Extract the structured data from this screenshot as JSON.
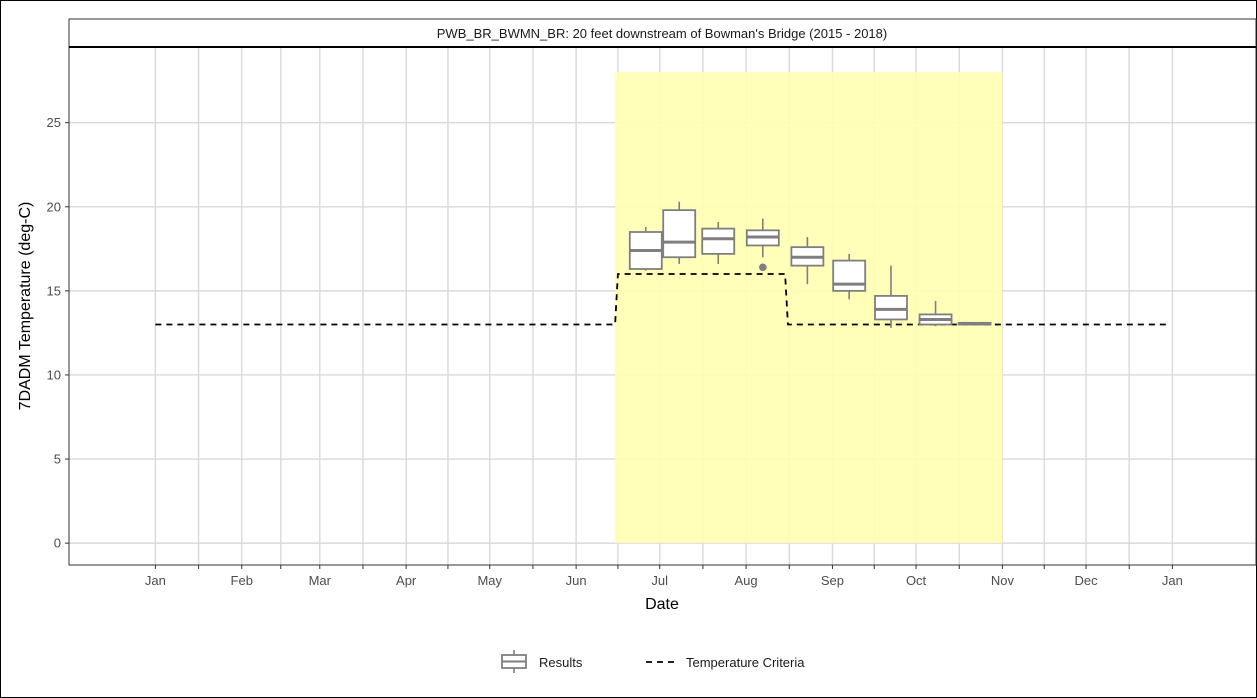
{
  "chart_data": {
    "type": "box",
    "title": "PWB_BR_BWMN_BR: 20 feet downstream of  Bowman's Bridge (2015 - 2018)",
    "xlabel": "Date",
    "ylabel": "7DADM Temperature (deg-C)",
    "ylim": [
      -1.3,
      29.5
    ],
    "yticks": [
      0,
      5,
      10,
      15,
      20,
      25
    ],
    "xdomain": [
      "2017-12-01",
      "2019-01-31"
    ],
    "xticks": [
      {
        "date": "2018-01-01",
        "label": "Jan"
      },
      {
        "date": "2018-02-01",
        "label": "Feb"
      },
      {
        "date": "2018-03-01",
        "label": "Mar"
      },
      {
        "date": "2018-04-01",
        "label": "Apr"
      },
      {
        "date": "2018-05-01",
        "label": "May"
      },
      {
        "date": "2018-06-01",
        "label": "Jun"
      },
      {
        "date": "2018-07-01",
        "label": "Jul"
      },
      {
        "date": "2018-08-01",
        "label": "Aug"
      },
      {
        "date": "2018-09-01",
        "label": "Sep"
      },
      {
        "date": "2018-10-01",
        "label": "Oct"
      },
      {
        "date": "2018-11-01",
        "label": "Nov"
      },
      {
        "date": "2018-12-01",
        "label": "Dec"
      },
      {
        "date": "2019-01-01",
        "label": "Jan"
      }
    ],
    "grid": true,
    "legend_position": "bottom",
    "highlight_period": {
      "start": "2018-06-15",
      "end": "2018-11-01",
      "ymin": 0,
      "ymax": 28,
      "color": "#ffffb3"
    },
    "boxes": [
      {
        "date": "2018-06-26",
        "whisker_low": 16.2,
        "q1": 16.3,
        "median": 17.4,
        "q3": 18.5,
        "whisker_high": 18.8,
        "outliers": []
      },
      {
        "date": "2018-07-08",
        "whisker_low": 16.6,
        "q1": 17.0,
        "median": 17.9,
        "q3": 19.8,
        "whisker_high": 20.3,
        "outliers": []
      },
      {
        "date": "2018-07-22",
        "whisker_low": 16.6,
        "q1": 17.2,
        "median": 18.1,
        "q3": 18.7,
        "whisker_high": 19.1,
        "outliers": []
      },
      {
        "date": "2018-08-07",
        "whisker_low": 17.0,
        "q1": 17.7,
        "median": 18.2,
        "q3": 18.6,
        "whisker_high": 19.3,
        "outliers": [
          16.4
        ]
      },
      {
        "date": "2018-08-23",
        "whisker_low": 15.4,
        "q1": 16.5,
        "median": 17.0,
        "q3": 17.6,
        "whisker_high": 18.2,
        "outliers": []
      },
      {
        "date": "2018-09-07",
        "whisker_low": 14.5,
        "q1": 15.0,
        "median": 15.4,
        "q3": 16.8,
        "whisker_high": 17.2,
        "outliers": []
      },
      {
        "date": "2018-09-22",
        "whisker_low": 12.8,
        "q1": 13.3,
        "median": 13.9,
        "q3": 14.7,
        "whisker_high": 16.5,
        "outliers": []
      },
      {
        "date": "2018-10-08",
        "whisker_low": 12.9,
        "q1": 13.0,
        "median": 13.3,
        "q3": 13.6,
        "whisker_high": 14.4,
        "outliers": []
      },
      {
        "date": "2018-10-22",
        "whisker_low": 12.95,
        "q1": 13.0,
        "median": 13.05,
        "q3": 13.1,
        "whisker_high": 13.15,
        "outliers": []
      }
    ],
    "criteria": {
      "name": "Temperature Criteria",
      "points": [
        [
          "2018-01-01",
          13
        ],
        [
          "2018-06-15",
          13
        ],
        [
          "2018-06-16",
          16
        ],
        [
          "2018-08-15",
          16
        ],
        [
          "2018-08-16",
          13
        ],
        [
          "2018-12-31",
          13
        ]
      ]
    },
    "legend": [
      {
        "key": "box",
        "label": "Results"
      },
      {
        "key": "dashed",
        "label": "Temperature Criteria"
      }
    ],
    "colors": {
      "box_stroke": "#7f7f7f",
      "highlight": "#ffffb3",
      "criteria": "#000000",
      "grid": "#d9d9d9"
    }
  }
}
